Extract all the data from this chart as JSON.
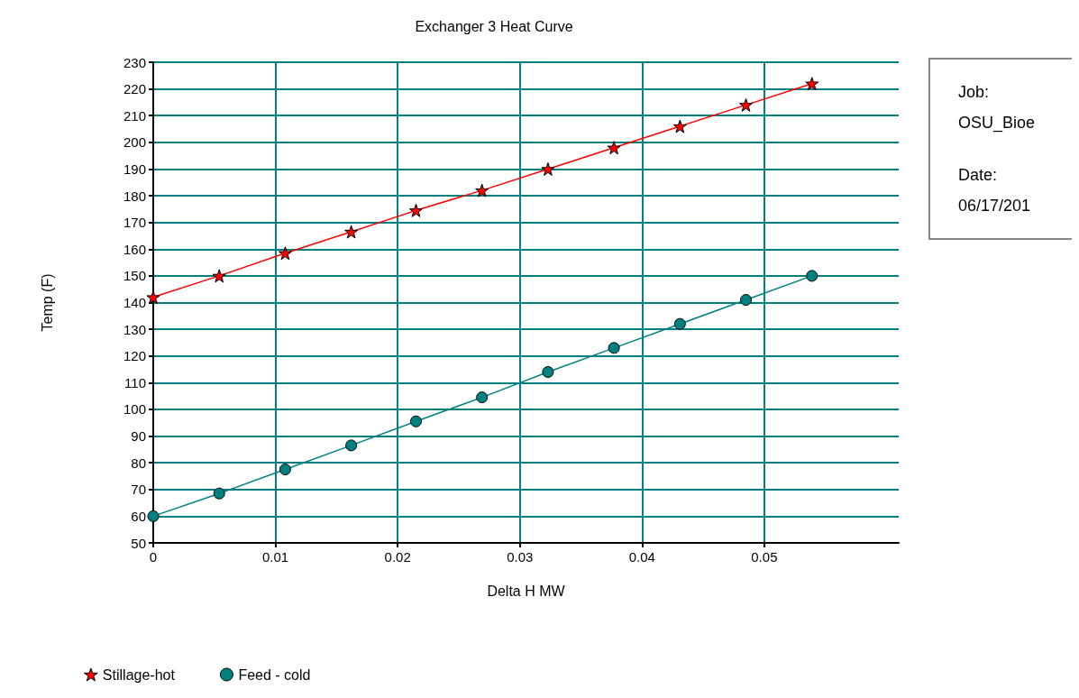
{
  "chart_data": {
    "type": "line",
    "title": "Exchanger 3 Heat Curve",
    "xlabel": "Delta H MW",
    "ylabel": "Temp (F)",
    "x": [
      0,
      0.0054,
      0.0108,
      0.0162,
      0.0215,
      0.0269,
      0.0323,
      0.0377,
      0.0431,
      0.0485,
      0.0539
    ],
    "series": [
      {
        "name": "Stillage-hot",
        "color": "#ff0000",
        "marker": "star",
        "values": [
          142,
          150,
          158.5,
          166.5,
          174.5,
          182,
          190,
          198,
          206,
          214,
          222
        ]
      },
      {
        "name": "Feed - cold",
        "color": "#008080",
        "marker": "circle",
        "values": [
          60,
          68.5,
          77.5,
          86.5,
          95.5,
          104.5,
          114,
          123,
          132,
          141,
          150
        ]
      }
    ],
    "xlim": [
      0,
      0.061
    ],
    "xticks": [
      0,
      0.01,
      0.02,
      0.03,
      0.04,
      0.05
    ],
    "ylim": [
      50,
      230
    ],
    "yticks": [
      50,
      60,
      70,
      80,
      90,
      100,
      110,
      120,
      130,
      140,
      150,
      160,
      170,
      180,
      190,
      200,
      210,
      220,
      230
    ],
    "grid": true,
    "legend": "bottom left",
    "line_style": "solid",
    "annotations": [
      "Job:",
      "OSU_Bioe",
      "Date:",
      "06/17/201"
    ]
  }
}
